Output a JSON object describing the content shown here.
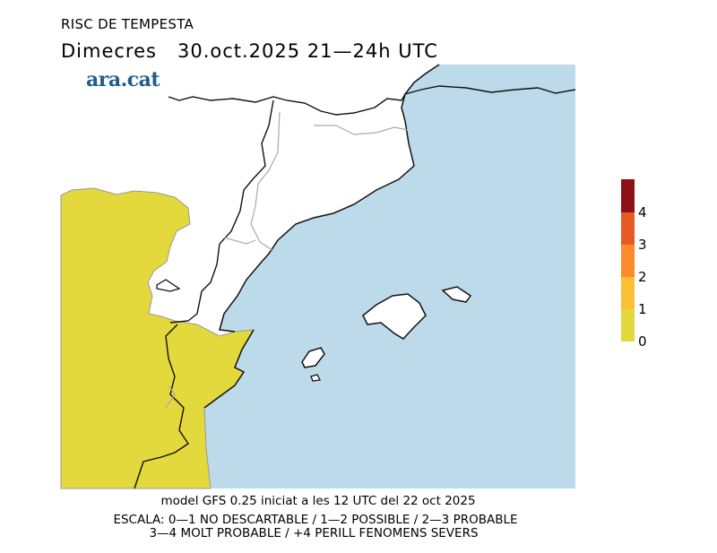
{
  "header": {
    "title": "RISC DE TEMPESTA",
    "subtitle": "Dimecres   30.oct.2025 21—24h UTC"
  },
  "logo": {
    "text": "ara.cat",
    "color": "#1f5d8e"
  },
  "map": {
    "sea_color": "#bddaea",
    "land_color": "#ffffff",
    "risk_area_level": "0-1"
  },
  "legend": {
    "ticks": [
      "0",
      "1",
      "2",
      "3",
      "4"
    ],
    "colors": [
      "#e3d83c",
      "#fdbf34",
      "#f98b2b",
      "#e85a25",
      "#8e1118"
    ]
  },
  "footer": {
    "model_line": "model GFS 0.25 iniciat a les 12 UTC del 22 oct 2025",
    "scale_line1": "ESCALA: 0—1 NO DESCARTABLE / 1—2 POSSIBLE / 2—3 PROBABLE",
    "scale_line2": "3—4 MOLT PROBABLE / +4 PERILL FENOMENS SEVERS"
  }
}
